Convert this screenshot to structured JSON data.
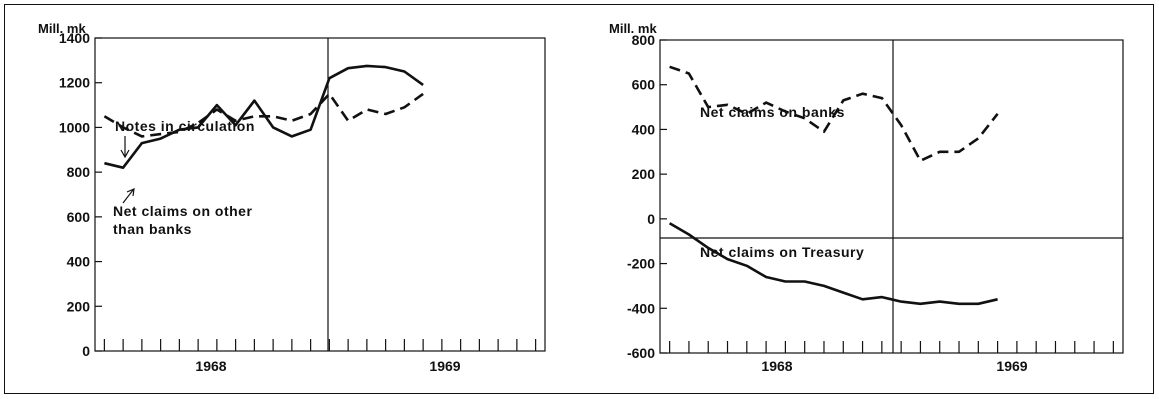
{
  "chart_data": [
    {
      "type": "line",
      "unit_label": "Mill. mk",
      "x_labels": [
        "1968",
        "1969"
      ],
      "x_ticks_months": 24,
      "ylim": [
        0,
        1400
      ],
      "yticks": [
        0,
        200,
        400,
        600,
        800,
        1000,
        1200,
        1400
      ],
      "x": [
        0,
        1,
        2,
        3,
        4,
        5,
        6,
        7,
        8,
        9,
        10,
        11,
        12,
        13,
        14,
        15,
        16,
        17,
        18,
        19,
        20,
        21,
        22,
        23
      ],
      "series": [
        {
          "name": "Notes in circulation",
          "style": "dashed",
          "values": [
            1050,
            1000,
            960,
            970,
            980,
            1020,
            1080,
            1030,
            1050,
            1050,
            1030,
            1060,
            1150,
            1030,
            1080,
            1060,
            1090,
            1150,
            null,
            null,
            null,
            null,
            null,
            null
          ]
        },
        {
          "name": "Net claims on other than banks",
          "style": "solid",
          "values": [
            840,
            820,
            930,
            950,
            990,
            1000,
            1100,
            1010,
            1120,
            1000,
            960,
            990,
            1220,
            1265,
            1275,
            1270,
            1250,
            1190,
            null,
            null,
            null,
            null,
            null,
            null
          ]
        }
      ],
      "annotations": [
        {
          "text": "Notes in circulation"
        },
        {
          "text": "Net claims on other"
        },
        {
          "text": "than banks"
        }
      ]
    },
    {
      "type": "line",
      "unit_label": "Mill. mk",
      "x_labels": [
        "1968",
        "1969"
      ],
      "x_ticks_months": 24,
      "ylim": [
        -600,
        800
      ],
      "yticks": [
        -600,
        -400,
        -200,
        0,
        200,
        400,
        600,
        800
      ],
      "x": [
        0,
        1,
        2,
        3,
        4,
        5,
        6,
        7,
        8,
        9,
        10,
        11,
        12,
        13,
        14,
        15,
        16,
        17,
        18,
        19,
        20,
        21,
        22,
        23
      ],
      "series": [
        {
          "name": "Net claims on banks",
          "style": "dashed",
          "values": [
            680,
            650,
            500,
            510,
            470,
            520,
            480,
            450,
            390,
            530,
            560,
            540,
            420,
            260,
            300,
            300,
            360,
            470,
            null,
            null,
            null,
            null,
            null,
            null
          ]
        },
        {
          "name": "Net claims on Treasury",
          "style": "solid",
          "values": [
            -20,
            -70,
            -130,
            -180,
            -210,
            -260,
            -280,
            -280,
            -300,
            -330,
            -360,
            -350,
            -370,
            -380,
            -370,
            -380,
            -380,
            -360,
            null,
            null,
            null,
            null,
            null,
            null
          ]
        }
      ],
      "annotations": [
        {
          "text": "Net claims on banks"
        },
        {
          "text": "Net claims on Treasury"
        }
      ]
    }
  ]
}
